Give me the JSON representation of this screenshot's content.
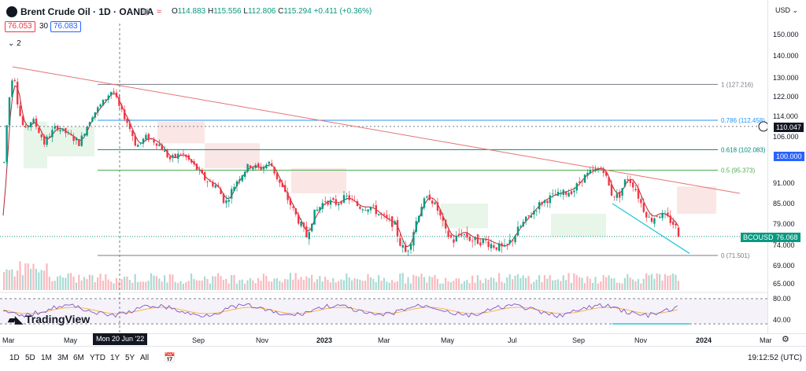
{
  "header": {
    "title": "Brent Crude Oil · 1D · OANDA",
    "compare_icon": "≈",
    "ohlc": {
      "o_label": "O",
      "o": "114.883",
      "h_label": "H",
      "h": "115.556",
      "l_label": "L",
      "l": "112.806",
      "c_label": "C",
      "c": "115.294",
      "change": "+0.411 (+0.36%)"
    },
    "sell_price": "76.053",
    "spread": "30",
    "buy_price": "76.083",
    "indicators_toggle": "⌄ 2",
    "currency": "USD ⌄"
  },
  "price_axis": [
    "150.000",
    "140.000",
    "130.000",
    "122.000",
    "114.000",
    "106.000",
    "100.000",
    "91.000",
    "85.000",
    "79.000",
    "74.000",
    "69.000",
    "65.000"
  ],
  "price_tags": {
    "crosshair": "110.047",
    "level_100": "100.000",
    "symbol": "BCOUSD",
    "last": "76.068"
  },
  "fib_levels": [
    {
      "ratio": "1 (127.216)",
      "color": "#787b86"
    },
    {
      "ratio": "0.786 (112.458)",
      "color": "#2196f3"
    },
    {
      "ratio": "0.618 (102.083)",
      "color": "#00897b"
    },
    {
      "ratio": "0.5 (95.373)",
      "color": "#4caf50"
    },
    {
      "ratio": "0 (71.501)",
      "color": "#787b86"
    }
  ],
  "rsi_axis": [
    "80.00",
    "40.00"
  ],
  "time_axis": [
    "Mar",
    "May",
    "Sep",
    "Nov",
    "2023",
    "Mar",
    "May",
    "Jul",
    "Sep",
    "Nov",
    "2024",
    "Mar"
  ],
  "crosshair_date": "Mon 20 Jun '22",
  "toolbar": {
    "timeframes": [
      "1D",
      "5D",
      "1M",
      "3M",
      "6M",
      "YTD",
      "1Y",
      "5Y",
      "All"
    ],
    "clock": "19:12:52 (UTC)"
  },
  "branding": "TradingView",
  "colors": {
    "up": "#089981",
    "down": "#f23645",
    "accent": "#2962ff",
    "ma": "#b22833",
    "trend": "#e57373",
    "channel": "#26c6da",
    "rsi": "#7e57c2"
  }
}
